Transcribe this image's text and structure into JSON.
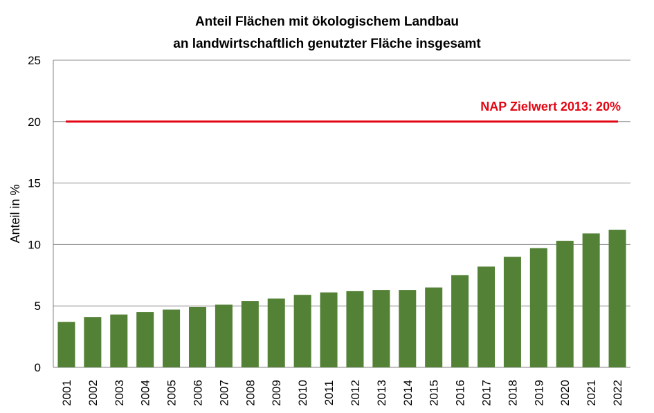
{
  "chart_data": {
    "type": "bar",
    "title": "Anteil Flächen mit ökologischem Landbau",
    "subtitle": "an landwirtschaftlich genutzter Fläche insgesamt",
    "xlabel": "",
    "ylabel": "Anteil in %",
    "ylim": [
      0,
      25
    ],
    "yticks": [
      0,
      5,
      10,
      15,
      20,
      25
    ],
    "grid": true,
    "categories": [
      "2001",
      "2002",
      "2003",
      "2004",
      "2005",
      "2006",
      "2007",
      "2008",
      "2009",
      "2010",
      "2011",
      "2012",
      "2013",
      "2014",
      "2015",
      "2016",
      "2017",
      "2018",
      "2019",
      "2020",
      "2021",
      "2022"
    ],
    "values": [
      3.7,
      4.1,
      4.3,
      4.5,
      4.7,
      4.9,
      5.1,
      5.4,
      5.6,
      5.9,
      6.1,
      6.2,
      6.3,
      6.3,
      6.5,
      7.5,
      8.2,
      9.0,
      9.7,
      10.3,
      10.9,
      11.2
    ],
    "bar_color": "#538135",
    "reference_line": {
      "value": 20,
      "label": "NAP Zielwert 2013: 20%",
      "color": "#e30613"
    }
  }
}
